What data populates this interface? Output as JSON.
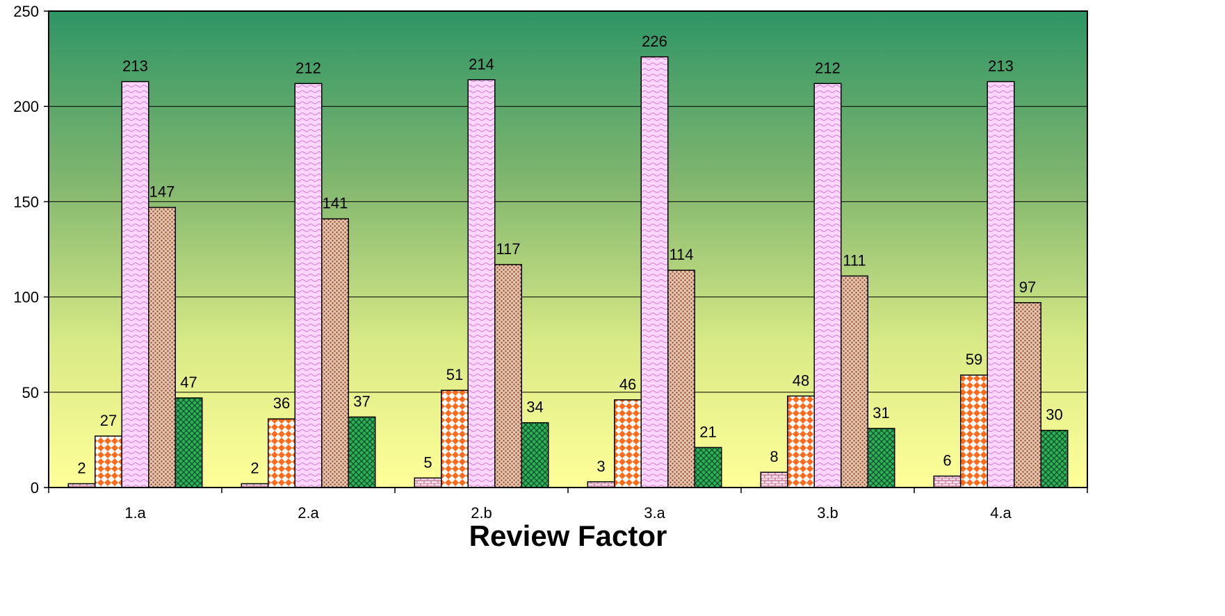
{
  "chart_data": {
    "type": "bar",
    "title": "",
    "xlabel": "Review Factor",
    "ylabel": "",
    "ylim": [
      0,
      250
    ],
    "yticks": [
      0,
      50,
      100,
      150,
      200,
      250
    ],
    "grid": true,
    "legend": "none",
    "categories": [
      "1.a",
      "2.a",
      "2.b",
      "3.a",
      "3.b",
      "4.a"
    ],
    "series": [
      {
        "values": [
          2,
          2,
          5,
          3,
          8,
          6
        ],
        "color": "#f2c8d8",
        "pattern": "brick"
      },
      {
        "values": [
          27,
          36,
          51,
          46,
          48,
          59
        ],
        "color": "#ff6a1a",
        "pattern": "diamond"
      },
      {
        "values": [
          213,
          212,
          214,
          226,
          212,
          213
        ],
        "color": "#ffccff",
        "pattern": "wave"
      },
      {
        "values": [
          147,
          141,
          117,
          114,
          111,
          97
        ],
        "color": "#c89072",
        "pattern": "dots"
      },
      {
        "values": [
          47,
          37,
          34,
          21,
          31,
          30
        ],
        "color": "#1e9e4a",
        "pattern": "check"
      }
    ],
    "background_gradient": [
      "#2e9566",
      "#ffff99"
    ]
  }
}
